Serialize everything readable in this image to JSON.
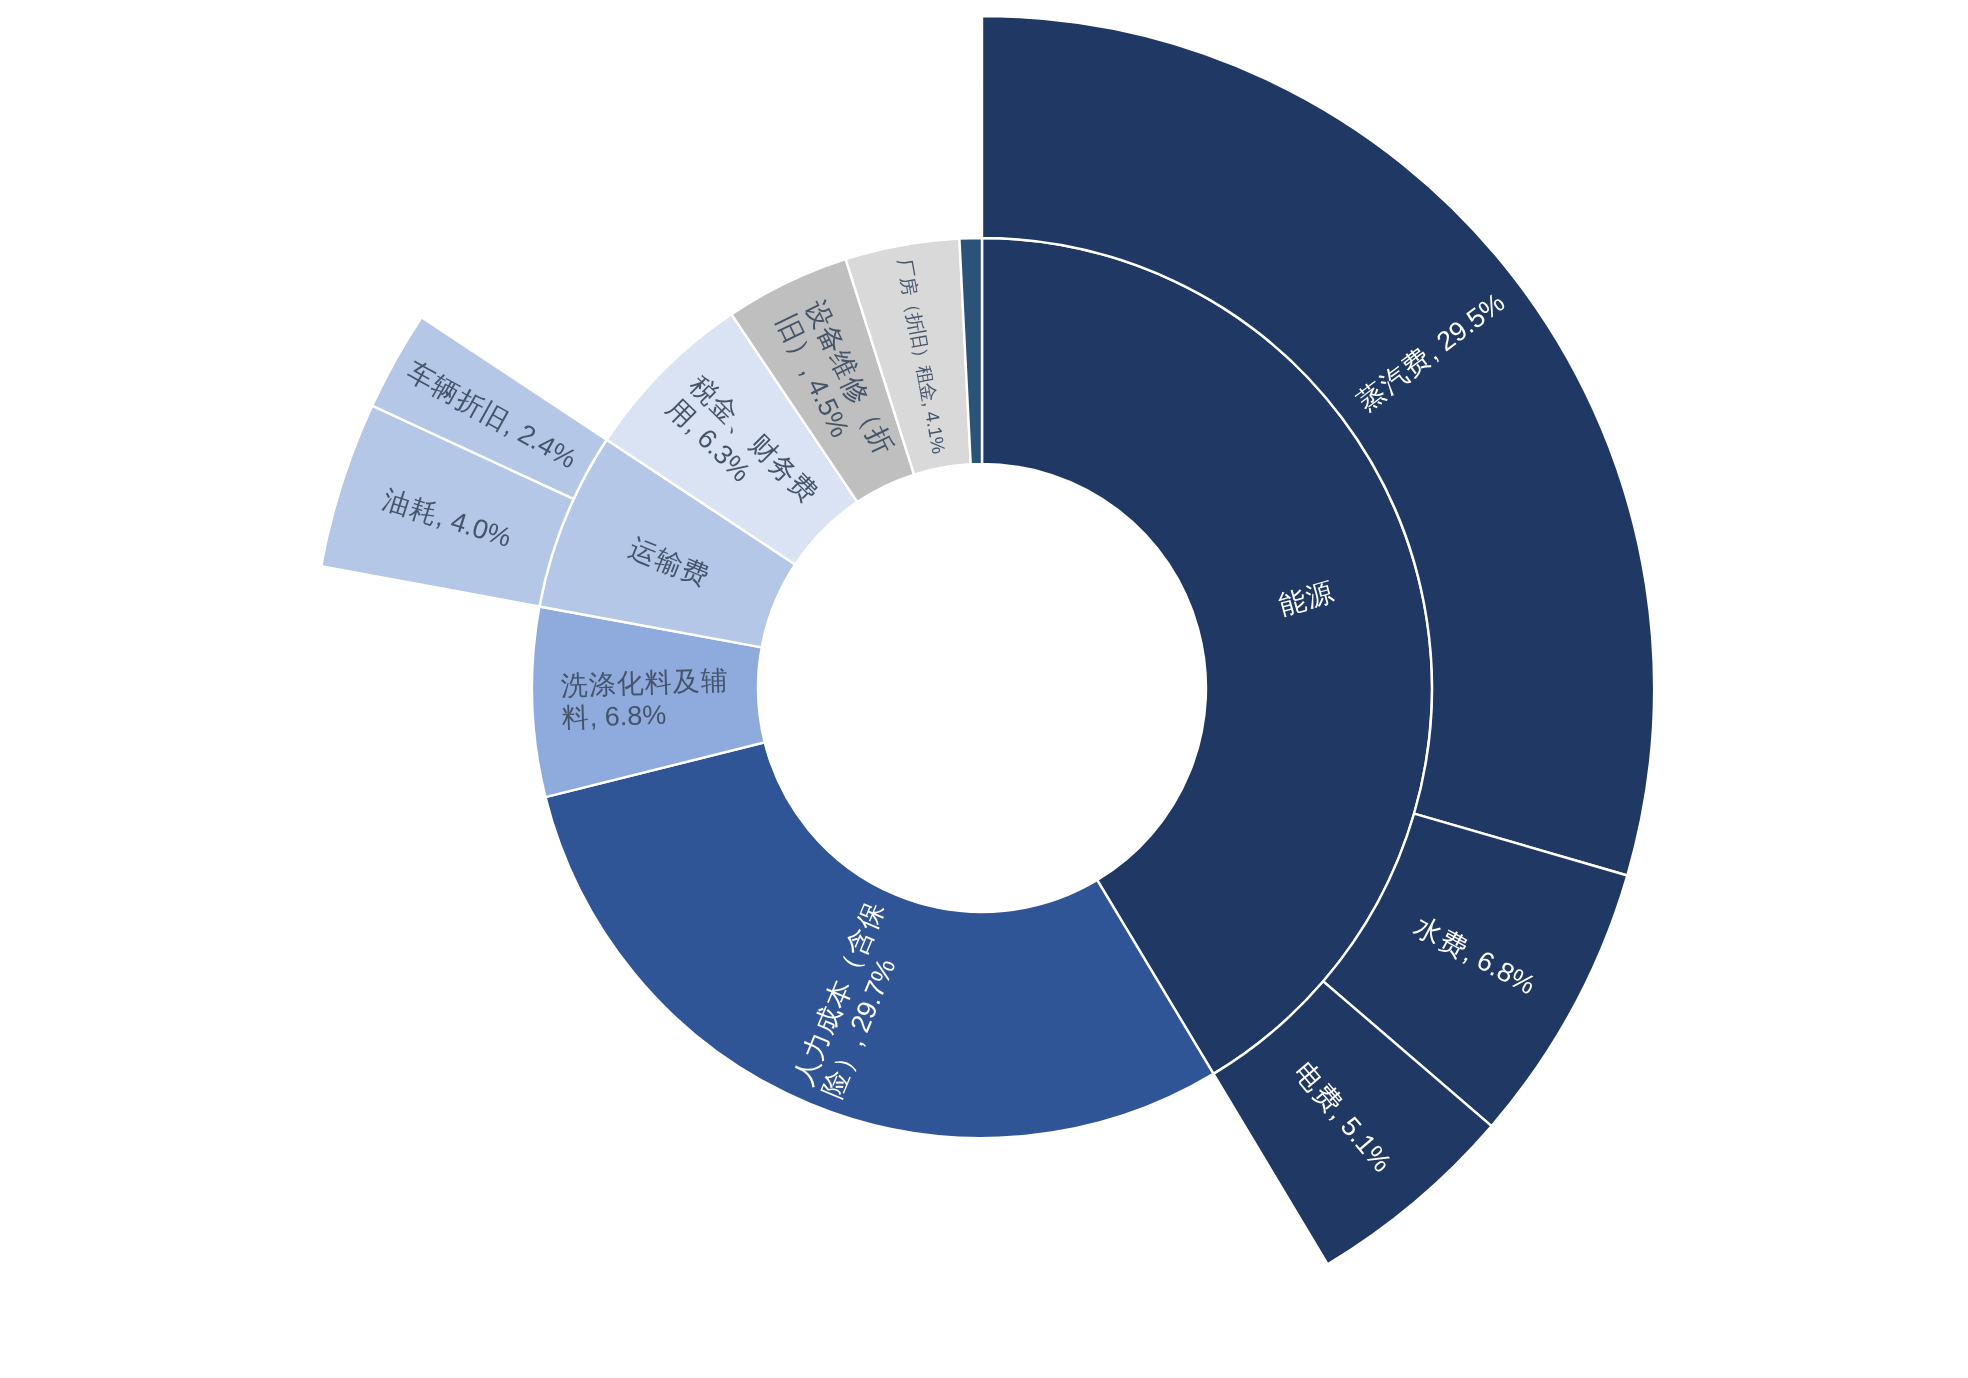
{
  "chart_data": [
    {
      "type": "donut",
      "categories": [
        "能源",
        "人力成本（含保险）",
        "洗涤化料及辅料",
        "运输费",
        "税金、财务费用",
        "设备维修（折旧）",
        "厂房（折旧）租金",
        null
      ],
      "values": [
        41.4,
        29.7,
        6.8,
        6.4,
        6.3,
        4.5,
        4.1,
        0.8
      ],
      "colors": [
        "#203864",
        "#2f5597",
        "#8faadc",
        "#b4c7e7",
        "#dae3f3",
        "#bfbfbf",
        "#d9d9d9",
        "#2b5377"
      ],
      "value_labels": [
        null,
        "29.7%",
        "6.8%",
        null,
        "6.3%",
        "4.5%",
        "4.1%",
        null
      ]
    },
    {
      "type": "donut",
      "categories": [
        "蒸汽费",
        "水费",
        "电费",
        null,
        null,
        "油耗",
        "车辆折旧",
        null,
        null,
        null,
        null
      ],
      "values": [
        29.5,
        6.8,
        5.1,
        null,
        null,
        4.0,
        2.4,
        null,
        null,
        null,
        null
      ],
      "colors": [
        "#203864",
        "#203864",
        "#203864",
        null,
        null,
        "#b4c7e7",
        "#b4c7e7",
        null,
        null,
        null,
        null
      ],
      "value_labels": [
        "29.5%",
        "6.8%",
        "5.1%",
        null,
        null,
        "4.0%",
        "2.4%",
        null,
        null,
        null,
        null
      ]
    }
  ]
}
